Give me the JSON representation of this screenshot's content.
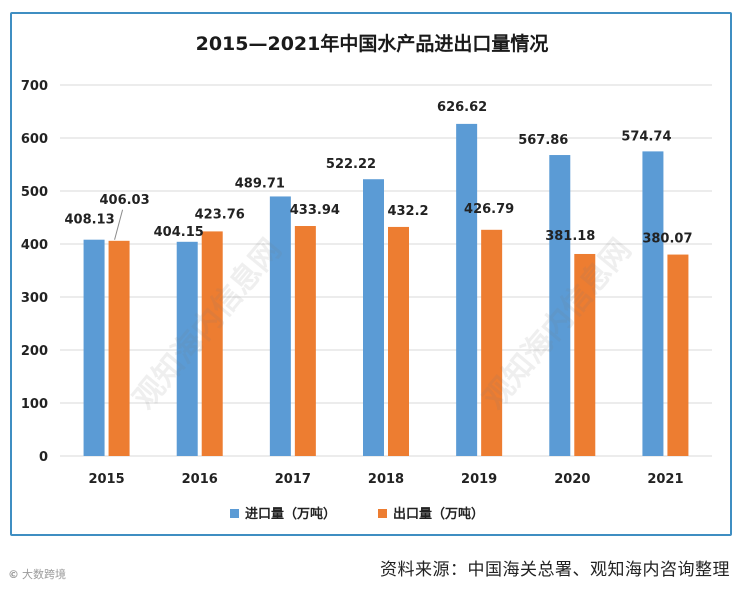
{
  "chart_data": {
    "type": "bar",
    "title": "2015—2021年中国水产品进出口量情况",
    "categories": [
      "2015",
      "2016",
      "2017",
      "2018",
      "2019",
      "2020",
      "2021"
    ],
    "series": [
      {
        "name": "进口量（万吨）",
        "color": "#5b9bd5",
        "values": [
          408.13,
          404.15,
          489.71,
          522.22,
          626.62,
          567.86,
          574.74
        ],
        "labels": [
          "408.13",
          "404.15",
          "489.71",
          "522.22",
          "626.62",
          "567.86",
          "574.74"
        ]
      },
      {
        "name": "出口量（万吨）",
        "color": "#ed7d31",
        "values": [
          406.03,
          423.76,
          433.94,
          432.2,
          426.79,
          381.18,
          380.07
        ],
        "labels": [
          "406.03",
          "423.76",
          "433.94",
          "432.2",
          "426.79",
          "381.18",
          "380.07"
        ]
      }
    ],
    "ylim": [
      0,
      700
    ],
    "yticks": [
      0,
      100,
      200,
      300,
      400,
      500,
      600,
      700
    ],
    "grid": true,
    "legend": "bottom",
    "xlabel": "",
    "ylabel": ""
  },
  "footer": {
    "source": "资料来源：中国海关总署、观知海内咨询整理",
    "brand": "大数跨境"
  }
}
